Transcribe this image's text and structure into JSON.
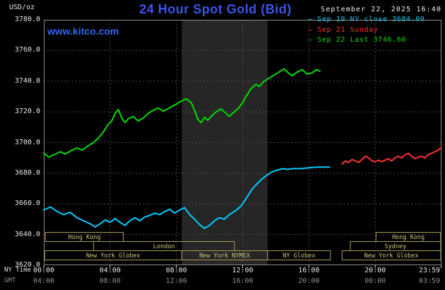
{
  "colors": {
    "background": "#000000",
    "title": "#3B54E8",
    "watermark": "#3366F0",
    "datetime": "#F0F0F0",
    "grid": "#4A4A4A",
    "frame": "#8C8C8C",
    "band": "#262626",
    "session_border": "#AC9C55",
    "session_text": "#CFC37E",
    "axis_text": "#E6E6E6",
    "gmt_text": "#8F8F8F",
    "tick": "#CCCCCC",
    "cyan": "#00CCFF",
    "red": "#FF3232",
    "green": "#00DC00"
  },
  "header": {
    "unit_label": "USD/oz",
    "title": "24 Hour Spot Gold (Bid)",
    "datetime": "September 22, 2025 16:40",
    "watermark": "www.kitco.com"
  },
  "legend": [
    {
      "label": "Sep 19 NY close 3684.00",
      "color": "#00CCFF"
    },
    {
      "label": "Sep 21 Sunday",
      "color": "#FF3232"
    },
    {
      "label": "Sep 22 Last 3746.60",
      "color": "#00DC00"
    }
  ],
  "chart_data": {
    "type": "line",
    "title": "24 Hour Spot Gold (Bid)",
    "ylabel": "USD/oz",
    "last_price": 3746.6,
    "prior_close": 3684.0,
    "y_axis": {
      "min": 3620,
      "max": 3780,
      "step": 20,
      "tick_labels": [
        "3780.0",
        "3760.0",
        "3740.0",
        "3720.0",
        "3700.0",
        "3680.0",
        "3660.0",
        "3640.0",
        "3620.0"
      ]
    },
    "x_axis": {
      "range_hours": [
        0,
        24
      ],
      "tick_hours": [
        0,
        4,
        8,
        12,
        16,
        20,
        23.983
      ],
      "grid_hours": [
        4,
        8,
        12,
        16,
        20
      ],
      "rows": [
        {
          "name": "NY Time",
          "ticks": [
            "00:00",
            "04:00",
            "08:00",
            "12:00",
            "16:00",
            "20:00",
            "23:59"
          ]
        },
        {
          "name": "GMT",
          "ticks": [
            "04:00",
            "08:00",
            "12:00",
            "16:00",
            "20:00",
            "00:00",
            "03:59"
          ]
        }
      ]
    },
    "shaded_band": {
      "label": "New York NYMEX hours",
      "start_hour": 8.33,
      "end_hour": 13.5
    },
    "series": [
      {
        "id": "sep-19-ny-close",
        "name": "Sep 19 NY close 3684.00",
        "color": "#00CCFF",
        "points": [
          [
            0,
            3656
          ],
          [
            0.4,
            3658
          ],
          [
            0.8,
            3655
          ],
          [
            1.2,
            3653
          ],
          [
            1.6,
            3654.5
          ],
          [
            2,
            3651
          ],
          [
            2.4,
            3649
          ],
          [
            2.8,
            3647
          ],
          [
            3.1,
            3645
          ],
          [
            3.4,
            3647
          ],
          [
            3.7,
            3649.5
          ],
          [
            4,
            3648
          ],
          [
            4.3,
            3650.5
          ],
          [
            4.6,
            3648
          ],
          [
            4.9,
            3646
          ],
          [
            5.2,
            3649
          ],
          [
            5.5,
            3651
          ],
          [
            5.8,
            3649
          ],
          [
            6.1,
            3651.5
          ],
          [
            6.4,
            3652.5
          ],
          [
            6.7,
            3654
          ],
          [
            7,
            3653
          ],
          [
            7.3,
            3655
          ],
          [
            7.6,
            3656.5
          ],
          [
            7.9,
            3654
          ],
          [
            8.2,
            3656
          ],
          [
            8.5,
            3657.5
          ],
          [
            8.8,
            3653
          ],
          [
            9.1,
            3650
          ],
          [
            9.4,
            3646.5
          ],
          [
            9.7,
            3644
          ],
          [
            10,
            3646
          ],
          [
            10.3,
            3649
          ],
          [
            10.6,
            3651
          ],
          [
            10.9,
            3650
          ],
          [
            11.2,
            3653
          ],
          [
            11.5,
            3655
          ],
          [
            11.8,
            3657.5
          ],
          [
            12,
            3660
          ],
          [
            12.3,
            3665
          ],
          [
            12.6,
            3670
          ],
          [
            12.9,
            3673.5
          ],
          [
            13.2,
            3676.5
          ],
          [
            13.5,
            3679
          ],
          [
            13.8,
            3681
          ],
          [
            14.1,
            3682
          ],
          [
            14.4,
            3683
          ],
          [
            14.7,
            3682.5
          ],
          [
            15,
            3683
          ],
          [
            15.5,
            3683
          ],
          [
            16,
            3683.5
          ],
          [
            16.5,
            3684
          ],
          [
            17.25,
            3684
          ]
        ]
      },
      {
        "id": "sep-21-sunday",
        "name": "Sep 21 Sunday",
        "color": "#FF3232",
        "points": [
          [
            18,
            3686
          ],
          [
            18.2,
            3688
          ],
          [
            18.4,
            3687
          ],
          [
            18.6,
            3689
          ],
          [
            18.8,
            3688
          ],
          [
            19,
            3687
          ],
          [
            19.2,
            3689
          ],
          [
            19.4,
            3691
          ],
          [
            19.6,
            3690
          ],
          [
            19.8,
            3688
          ],
          [
            20,
            3687.5
          ],
          [
            20.2,
            3688.5
          ],
          [
            20.4,
            3687.5
          ],
          [
            20.6,
            3688.5
          ],
          [
            20.8,
            3689.5
          ],
          [
            21,
            3688
          ],
          [
            21.2,
            3690
          ],
          [
            21.4,
            3691
          ],
          [
            21.6,
            3690
          ],
          [
            21.8,
            3692
          ],
          [
            22,
            3693
          ],
          [
            22.2,
            3691
          ],
          [
            22.4,
            3689.5
          ],
          [
            22.6,
            3690.5
          ],
          [
            22.8,
            3691
          ],
          [
            23,
            3690
          ],
          [
            23.2,
            3692
          ],
          [
            23.4,
            3693
          ],
          [
            23.6,
            3694
          ],
          [
            23.8,
            3695
          ],
          [
            23.98,
            3696.5
          ]
        ]
      },
      {
        "id": "sep-22-last",
        "name": "Sep 22 Last 3746.60",
        "color": "#00DC00",
        "points": [
          [
            0,
            3693
          ],
          [
            0.3,
            3690.5
          ],
          [
            0.6,
            3692
          ],
          [
            1,
            3694
          ],
          [
            1.3,
            3692.5
          ],
          [
            1.7,
            3695
          ],
          [
            2,
            3696.5
          ],
          [
            2.3,
            3695
          ],
          [
            2.7,
            3698
          ],
          [
            3,
            3700
          ],
          [
            3.3,
            3703
          ],
          [
            3.6,
            3707
          ],
          [
            3.9,
            3712
          ],
          [
            4.1,
            3714
          ],
          [
            4.3,
            3719
          ],
          [
            4.5,
            3721.5
          ],
          [
            4.7,
            3716
          ],
          [
            4.9,
            3713
          ],
          [
            5.1,
            3715.5
          ],
          [
            5.4,
            3717
          ],
          [
            5.7,
            3714
          ],
          [
            6,
            3716
          ],
          [
            6.3,
            3719
          ],
          [
            6.6,
            3721
          ],
          [
            6.9,
            3722.5
          ],
          [
            7.2,
            3720.5
          ],
          [
            7.5,
            3722
          ],
          [
            7.8,
            3724
          ],
          [
            8,
            3725
          ],
          [
            8.3,
            3727
          ],
          [
            8.6,
            3728.5
          ],
          [
            8.9,
            3726
          ],
          [
            9.1,
            3721
          ],
          [
            9.3,
            3715
          ],
          [
            9.5,
            3713
          ],
          [
            9.7,
            3716.5
          ],
          [
            9.9,
            3714.5
          ],
          [
            10.1,
            3717
          ],
          [
            10.4,
            3720
          ],
          [
            10.7,
            3722
          ],
          [
            11,
            3719
          ],
          [
            11.2,
            3717
          ],
          [
            11.5,
            3720
          ],
          [
            11.8,
            3723
          ],
          [
            12,
            3726
          ],
          [
            12.2,
            3730
          ],
          [
            12.5,
            3735
          ],
          [
            12.8,
            3738
          ],
          [
            13,
            3736.5
          ],
          [
            13.3,
            3740
          ],
          [
            13.6,
            3742
          ],
          [
            13.9,
            3744
          ],
          [
            14.2,
            3746
          ],
          [
            14.5,
            3748
          ],
          [
            14.8,
            3745
          ],
          [
            15,
            3743.5
          ],
          [
            15.3,
            3746
          ],
          [
            15.6,
            3747.5
          ],
          [
            15.9,
            3744.5
          ],
          [
            16.2,
            3745.5
          ],
          [
            16.45,
            3747.5
          ],
          [
            16.67,
            3746.6
          ]
        ]
      }
    ],
    "sessions": [
      {
        "row": 0,
        "label": "Hong Kong",
        "start": 0.1,
        "end": 4.8
      },
      {
        "row": 0,
        "label": "Hong Kong",
        "start": 20.05,
        "end": 23.95
      },
      {
        "row": 1,
        "label": "London",
        "start": 3.0,
        "end": 11.5
      },
      {
        "row": 1,
        "label": "Sydney",
        "start": 18.5,
        "end": 23.95
      },
      {
        "row": 2,
        "label": "New York Globex",
        "start": 0.05,
        "end": 8.33
      },
      {
        "row": 2,
        "label": "New York NYMEX",
        "start": 8.33,
        "end": 13.5
      },
      {
        "row": 2,
        "label": "NY Globex",
        "start": 13.5,
        "end": 17.3
      },
      {
        "row": 2,
        "label": "New York Globex",
        "start": 18.0,
        "end": 23.95
      }
    ]
  }
}
